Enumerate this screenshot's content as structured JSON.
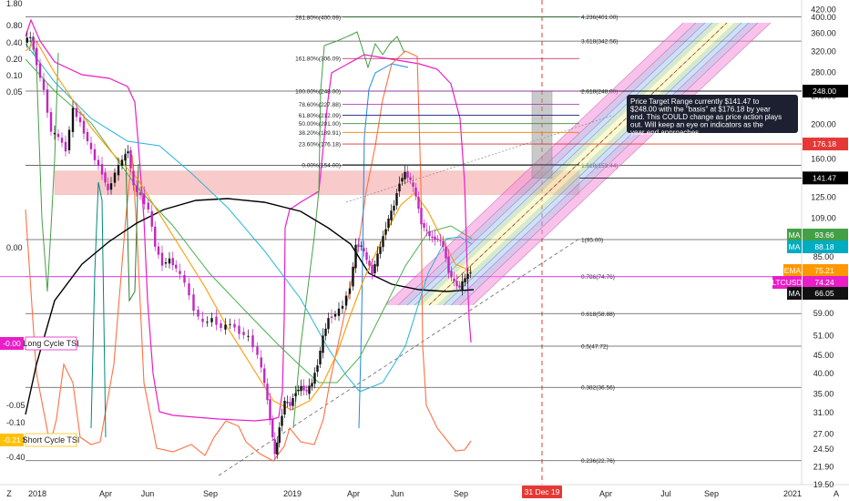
{
  "chart_data": {
    "type": "line",
    "title": "",
    "symbol": "LTCUSD",
    "x_axis": {
      "labels": [
        "Z",
        "2018",
        "Apr",
        "Jun",
        "Sep",
        "2019",
        "Apr",
        "Jun",
        "Sep",
        "Apr",
        "Jul",
        "Sep",
        "2021",
        "A"
      ],
      "highlight": "31 Dec 19"
    },
    "right_axis": {
      "scale": "log",
      "ticks": [
        "420.00",
        "400.00",
        "360.00",
        "320.00",
        "280.00",
        "240.00",
        "200.00",
        "180.00",
        "160.00",
        "140.00",
        "125.00",
        "109.00",
        "97.00",
        "85.00",
        "75.00",
        "66.00",
        "59.00",
        "51.00",
        "45.00",
        "40.00",
        "35.00",
        "31.00",
        "27.00",
        "24.50",
        "21.90",
        "19.50"
      ]
    },
    "left_axis": {
      "ticks": [
        "1.80",
        "0.80",
        "0.40",
        "0.20",
        "0.10",
        "0.05",
        "0.00",
        "-0.05",
        "-0.10",
        "-0.20",
        "-0.40"
      ]
    },
    "fib_levels": [
      {
        "label": "4.236(401.00)",
        "value": 401.0
      },
      {
        "label": "3.618(342.56)",
        "value": 342.56
      },
      {
        "label": "2.618(248.00)",
        "value": 248.0
      },
      {
        "label": "1.618(153.44)",
        "value": 153.44
      },
      {
        "label": "1(95.00)",
        "value": 95.0
      },
      {
        "label": "0.786(74.76)",
        "value": 74.76
      },
      {
        "label": "0.618(58.88)",
        "value": 58.88
      },
      {
        "label": "0.5(47.72)",
        "value": 47.72
      },
      {
        "label": "0.382(36.56)",
        "value": 36.56
      },
      {
        "label": "0.236(22.76)",
        "value": 22.76
      }
    ],
    "retracement_levels": [
      {
        "label": "261.80%(400.09)",
        "value": 400.09,
        "color": "#2e7d32"
      },
      {
        "label": "161.80%(306.09)",
        "value": 306.09,
        "color": "#c2185b"
      },
      {
        "label": "100.00%(248.00)",
        "value": 248.0,
        "color": "#9c27b0"
      },
      {
        "label": "78.60%(227.88)",
        "value": 227.88,
        "color": "#9c27b0"
      },
      {
        "label": "61.80%(212.09)",
        "value": 212.09,
        "color": "#1a237e"
      },
      {
        "label": "50.00%(201.00)",
        "value": 201.0,
        "color": "#388e3c"
      },
      {
        "label": "38.20%(189.91)",
        "value": 189.91,
        "color": "#f57c00"
      },
      {
        "label": "23.60%(176.18)",
        "value": 176.18,
        "color": "#d32f2f"
      },
      {
        "label": "0.00%(154.00)",
        "value": 154.0,
        "color": "#222222"
      }
    ],
    "price_tags": [
      {
        "label": "248.00",
        "value": 248.0,
        "bg": "#000000",
        "fg": "#ffffff"
      },
      {
        "label": "176.18",
        "value": 176.18,
        "bg": "#e53935",
        "fg": "#ffffff"
      },
      {
        "label": "141.47",
        "value": 141.47,
        "bg": "#000000",
        "fg": "#ffffff"
      }
    ],
    "indicator_tags": [
      {
        "name": "MA",
        "label": "93.66",
        "value": 93.66,
        "bg": "#43a047"
      },
      {
        "name": "MA",
        "label": "88.18",
        "value": 88.18,
        "bg": "#00acc1"
      },
      {
        "name": "EMA",
        "label": "75.21",
        "value": 75.21,
        "bg": "#ff9800"
      },
      {
        "name": "LTCUSD",
        "label": "74.24",
        "value": 74.24,
        "bg": "#e91ec8"
      },
      {
        "name": "MA",
        "label": "66.05",
        "value": 66.05,
        "bg": "#111111"
      }
    ],
    "left_tags": [
      {
        "value_label": "-0.00",
        "name": "Long Cycle TSI",
        "bg": "#e91ec8",
        "fg": "#ffffff"
      },
      {
        "value_label": "-0.21",
        "name": "Short Cycle TSI",
        "bg": "#ffc107",
        "fg": "#000000"
      }
    ],
    "resistance_zone": {
      "low": 127,
      "high": 148
    },
    "target_box": {
      "low": 141.47,
      "high": 248.0
    },
    "annotation": "Price Target Range currently $141.47 to $248.00 with the \"basis\" at $176.18 by year end.  This COULD change as price action plays out.  Will keep an eye on indicators as the year end approaches.",
    "colors": {
      "candle_up": "#111111",
      "candle_down": "#c026c0",
      "ma_black": "#000000",
      "ma_cyan": "#26b5d5",
      "ma_green": "#4caf50",
      "ema_orange": "#ff9800",
      "tsi_magenta": "#e91ec8",
      "tsi_orange": "#ff7043"
    }
  }
}
